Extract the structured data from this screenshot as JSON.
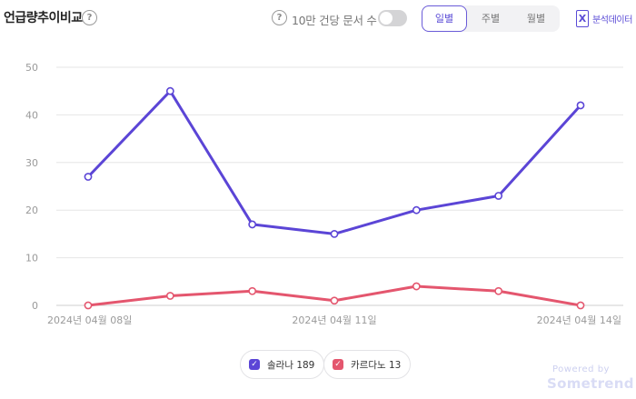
{
  "header": {
    "title": "언급량추이비교",
    "help_glyph": "?",
    "option_label": "10만 건당 문서 수",
    "toggle_on": false,
    "period_tabs": [
      {
        "label": "일별",
        "active": true
      },
      {
        "label": "주별",
        "active": false
      },
      {
        "label": "월별",
        "active": false
      }
    ],
    "export_label": "분석데이터",
    "export_icon": "excel-icon",
    "export_icon_glyph": "X"
  },
  "legend": [
    {
      "label": "솔라나 189",
      "color": "#5b45d6",
      "checked": true
    },
    {
      "label": "카르다노 13",
      "color": "#e4566e",
      "checked": true
    }
  ],
  "footer": {
    "powered_by": "Powered by",
    "brand": "Sometrend"
  },
  "colors": {
    "accent": "#5b45d6",
    "series1": "#5b45d6",
    "series2": "#e4566e",
    "grid": "#e6e6e6"
  },
  "chart_data": {
    "type": "line",
    "x": [
      "2024-04-08",
      "2024-04-09",
      "2024-04-10",
      "2024-04-11",
      "2024-04-12",
      "2024-04-13",
      "2024-04-14"
    ],
    "x_tick_labels": [
      "2024년 04월 08일",
      "",
      "",
      "2024년 04월 11일",
      "",
      "",
      "2024년 04월 14일"
    ],
    "y_ticks": [
      0,
      10,
      20,
      30,
      40,
      50
    ],
    "ylim": [
      0,
      50
    ],
    "grid": true,
    "legend_position": "bottom",
    "series": [
      {
        "name": "솔라나",
        "values": [
          27,
          45,
          17,
          15,
          20,
          23,
          42
        ],
        "color": "#5b45d6"
      },
      {
        "name": "카르다노",
        "values": [
          0,
          2,
          3,
          1,
          4,
          3,
          0
        ],
        "color": "#e4566e"
      }
    ]
  }
}
